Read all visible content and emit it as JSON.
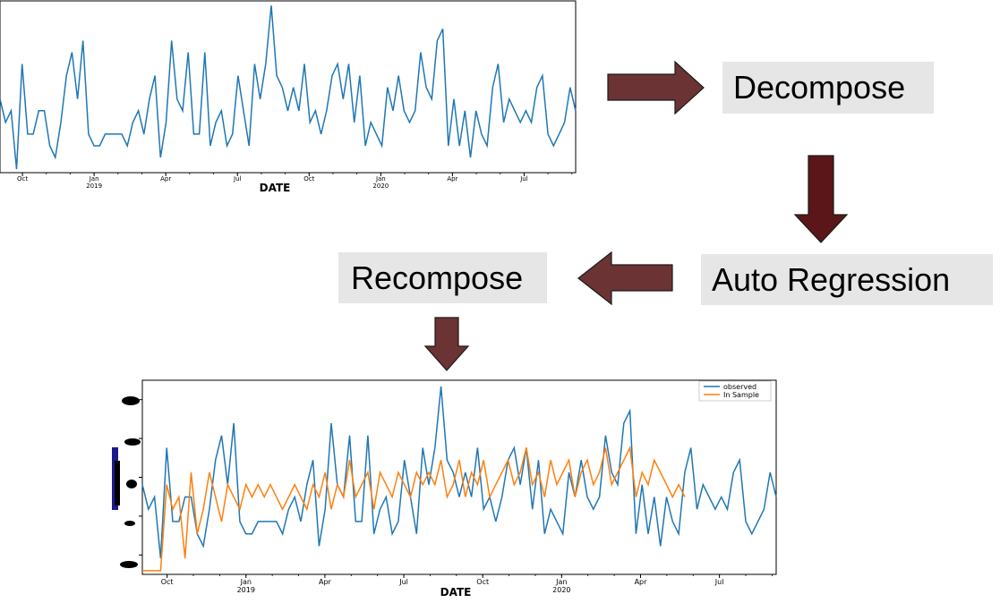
{
  "steps": {
    "decompose": "Decompose",
    "auto_regression": "Auto Regression",
    "recompose": "Recompose"
  },
  "colors": {
    "arrow": "#6b3334",
    "arrow_down": "#5a1618",
    "box_bg": "#e6e6e6",
    "series_observed": "#1f77b4",
    "series_insample": "#ff7f0e"
  },
  "icons": [
    "arrow-right-icon",
    "arrow-down-icon",
    "arrow-left-icon",
    "arrow-down-icon"
  ],
  "chart_data": [
    {
      "type": "line",
      "xlabel": "DATE",
      "x_ticks": [
        {
          "label": "Oct",
          "sub": ""
        },
        {
          "label": "Jan",
          "sub": "2019"
        },
        {
          "label": "Apr",
          "sub": ""
        },
        {
          "label": "Jul",
          "sub": ""
        },
        {
          "label": "Oct",
          "sub": ""
        },
        {
          "label": "Jan",
          "sub": "2020"
        },
        {
          "label": "Apr",
          "sub": ""
        },
        {
          "label": "Jul",
          "sub": ""
        }
      ],
      "series": [
        {
          "values": [
            6,
            4,
            5,
            0,
            9,
            3,
            3,
            5,
            5,
            2,
            1,
            4,
            8,
            10,
            6,
            11,
            3,
            2,
            2,
            3,
            3,
            3,
            3,
            2,
            4,
            5,
            3,
            6,
            8,
            1,
            4,
            11,
            6,
            5,
            10,
            3,
            3,
            10,
            2,
            4,
            5,
            2,
            3,
            8,
            5,
            2,
            9,
            6,
            9,
            14,
            8,
            7,
            5,
            7,
            5,
            9,
            4,
            5,
            3,
            5,
            8,
            9,
            6,
            9,
            4,
            8,
            2,
            4,
            3,
            2,
            7,
            5,
            8,
            5,
            4,
            5,
            10,
            7,
            6,
            11,
            12,
            2,
            6,
            2,
            5,
            1,
            5,
            3,
            2,
            7,
            9,
            4,
            6,
            5,
            4,
            5,
            4,
            7,
            8,
            3,
            2,
            3,
            4,
            7,
            5
          ]
        }
      ]
    },
    {
      "type": "line",
      "xlabel": "DATE",
      "x_ticks": [
        {
          "label": "Oct",
          "sub": ""
        },
        {
          "label": "Jan",
          "sub": "2019"
        },
        {
          "label": "Apr",
          "sub": ""
        },
        {
          "label": "Jul",
          "sub": ""
        },
        {
          "label": "Oct",
          "sub": ""
        },
        {
          "label": "Jan",
          "sub": "2020"
        },
        {
          "label": "Apr",
          "sub": ""
        },
        {
          "label": "Jul",
          "sub": ""
        }
      ],
      "legend": [
        "observed",
        "In Sample"
      ],
      "legend_placement": "top-right",
      "series": [
        {
          "name": "observed",
          "values": [
            6,
            4,
            5,
            0,
            9,
            3,
            3,
            5,
            5,
            2,
            1,
            4,
            8,
            10,
            6,
            11,
            3,
            2,
            2,
            3,
            3,
            3,
            3,
            2,
            4,
            5,
            3,
            6,
            8,
            1,
            4,
            11,
            6,
            5,
            10,
            3,
            3,
            10,
            2,
            4,
            5,
            2,
            3,
            8,
            5,
            2,
            9,
            6,
            9,
            14,
            8,
            7,
            5,
            7,
            5,
            9,
            4,
            5,
            3,
            5,
            8,
            9,
            6,
            9,
            4,
            8,
            2,
            4,
            3,
            2,
            7,
            5,
            8,
            5,
            4,
            5,
            10,
            7,
            6,
            11,
            12,
            2,
            6,
            2,
            5,
            1,
            5,
            3,
            2,
            7,
            9,
            4,
            6,
            5,
            4,
            5,
            4,
            7,
            8,
            3,
            2,
            3,
            4,
            7,
            5
          ]
        },
        {
          "name": "In Sample",
          "values": [
            -1,
            -1,
            -1,
            -1,
            6,
            4,
            5,
            0,
            7,
            2,
            4,
            7,
            5,
            3,
            6,
            5,
            4,
            6,
            5,
            6,
            5,
            6,
            5,
            4,
            5,
            6,
            5,
            4,
            6,
            5,
            7,
            4,
            6,
            5,
            8,
            5,
            6,
            7,
            4,
            7,
            6,
            5,
            7,
            6,
            5,
            7,
            6,
            7,
            6,
            8,
            5,
            6,
            8,
            5,
            7,
            6,
            8,
            5,
            6,
            7,
            8,
            6,
            7,
            9,
            6,
            7,
            5,
            8,
            6,
            7,
            8,
            5,
            7,
            8,
            6,
            7,
            9,
            6,
            7,
            8,
            9,
            5,
            7,
            6,
            8,
            7,
            6,
            5,
            6,
            5
          ]
        }
      ]
    }
  ]
}
